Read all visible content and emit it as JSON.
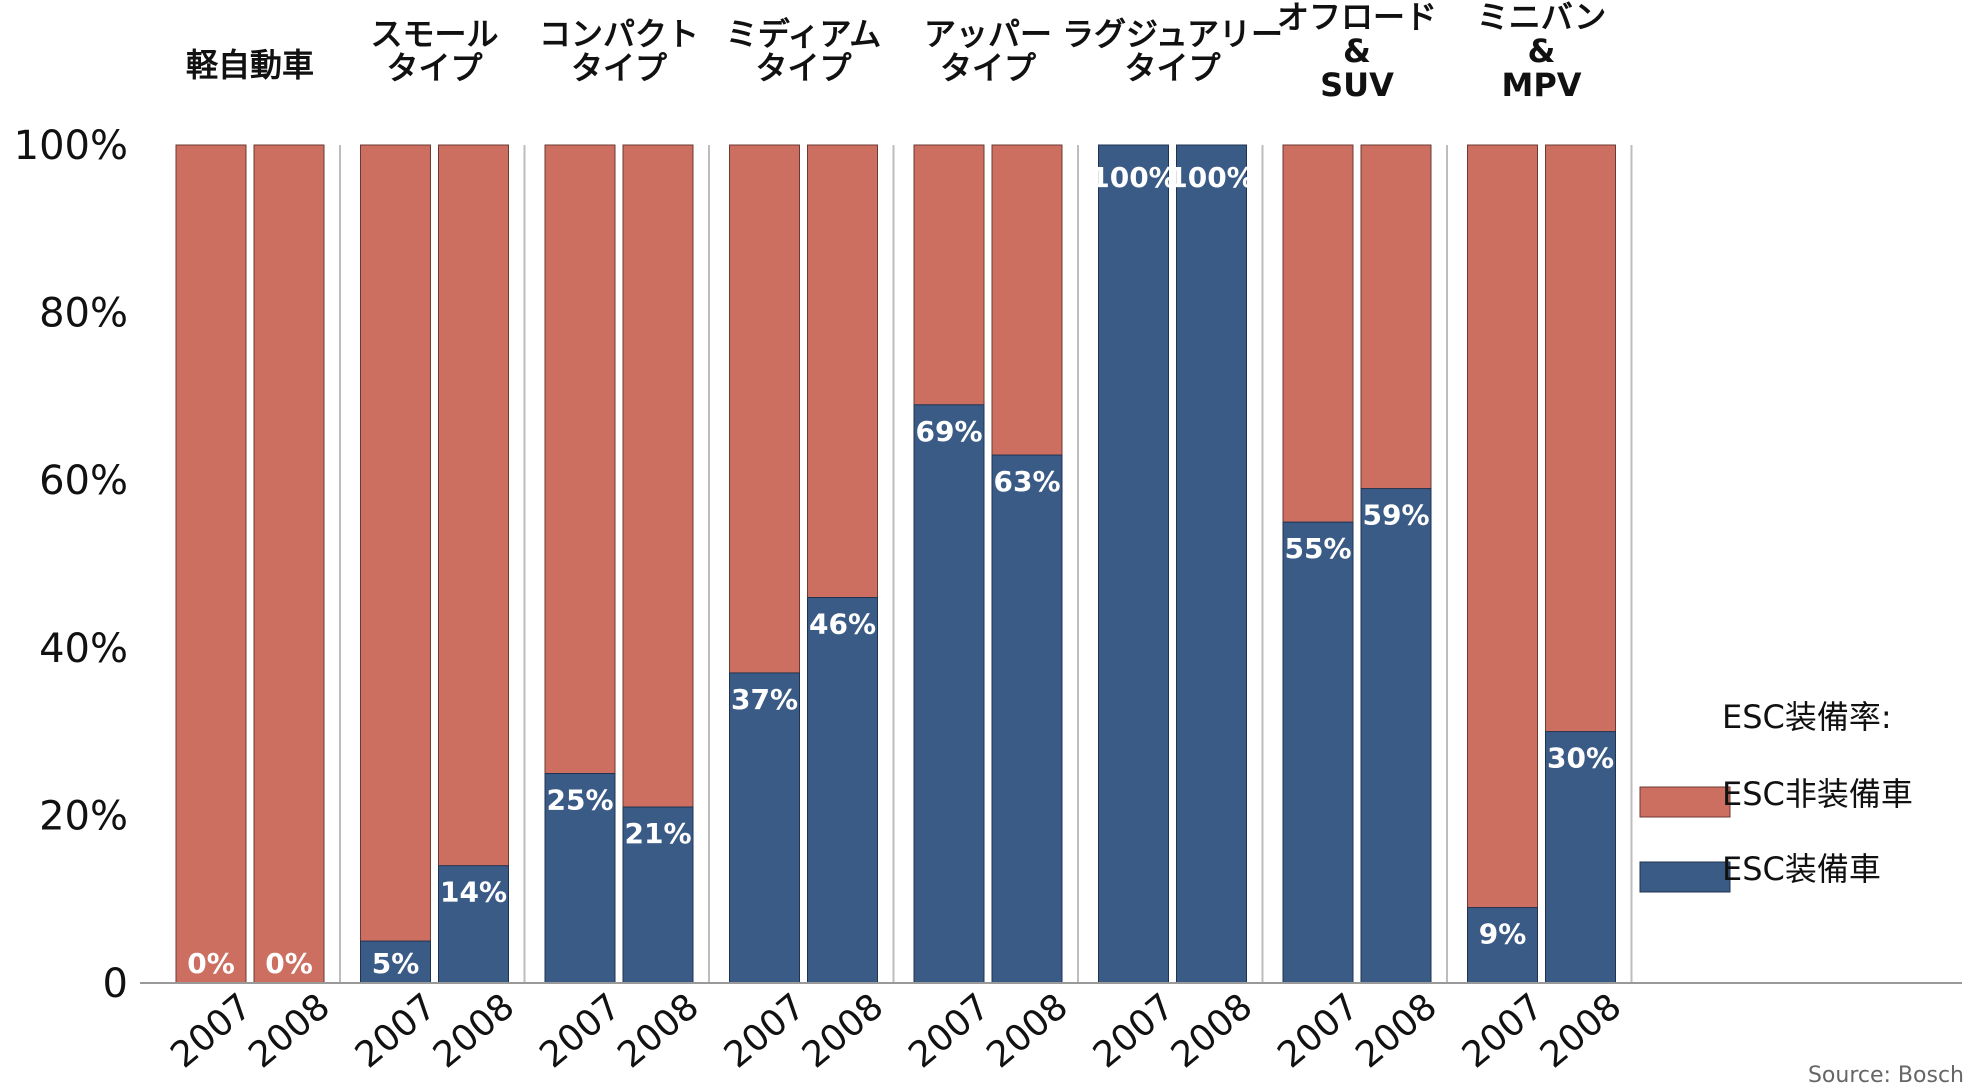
{
  "colors": {
    "equipped": "#3b5b87",
    "not_equipped": "#cc6f61",
    "separator": "#bdbdbd",
    "axis": "#999999"
  },
  "chart_data": {
    "type": "bar",
    "stacked": true,
    "title": "",
    "xlabel": "",
    "ylabel": "",
    "ylim": [
      0,
      100
    ],
    "yticks": [
      "0",
      "20%",
      "40%",
      "60%",
      "80%",
      "100%"
    ],
    "groups": [
      {
        "label": [
          "軽自動車"
        ],
        "years": [
          "2007",
          "2008"
        ],
        "values": [
          0,
          0
        ],
        "labels": [
          "0%",
          "0%"
        ]
      },
      {
        "label": [
          "スモール",
          "タイプ"
        ],
        "years": [
          "2007",
          "2008"
        ],
        "values": [
          5,
          14
        ],
        "labels": [
          "5%",
          "14%"
        ]
      },
      {
        "label": [
          "コンパクト",
          "タイプ"
        ],
        "years": [
          "2007",
          "2008"
        ],
        "values": [
          25,
          21
        ],
        "labels": [
          "25%",
          "21%"
        ]
      },
      {
        "label": [
          "ミディアム",
          "タイプ"
        ],
        "years": [
          "2007",
          "2008"
        ],
        "values": [
          37,
          46
        ],
        "labels": [
          "37%",
          "46%"
        ]
      },
      {
        "label": [
          "アッパー",
          "タイプ"
        ],
        "years": [
          "2007",
          "2008"
        ],
        "values": [
          69,
          63
        ],
        "labels": [
          "69%",
          "63%"
        ]
      },
      {
        "label": [
          "ラグジュアリー",
          "タイプ"
        ],
        "years": [
          "2007",
          "2008"
        ],
        "values": [
          100,
          100
        ],
        "labels": [
          "100%",
          "100%"
        ]
      },
      {
        "label": [
          "オフロード",
          "&",
          "SUV"
        ],
        "years": [
          "2007",
          "2008"
        ],
        "values": [
          55,
          59
        ],
        "labels": [
          "55%",
          "59%"
        ]
      },
      {
        "label": [
          "ミニバン",
          "&",
          "MPV"
        ],
        "years": [
          "2007",
          "2008"
        ],
        "values": [
          9,
          30
        ],
        "labels": [
          "9%",
          "30%"
        ]
      }
    ],
    "series": [
      {
        "name": "ESC非装備車",
        "color": "#cc6f61"
      },
      {
        "name": "ESC装備車",
        "color": "#3b5b87"
      }
    ],
    "legend": {
      "title": "ESC装備率:",
      "position": "right",
      "items": [
        "ESC非装備車",
        "ESC装備車"
      ]
    }
  },
  "footer": {
    "source": "Source: Bosch"
  }
}
